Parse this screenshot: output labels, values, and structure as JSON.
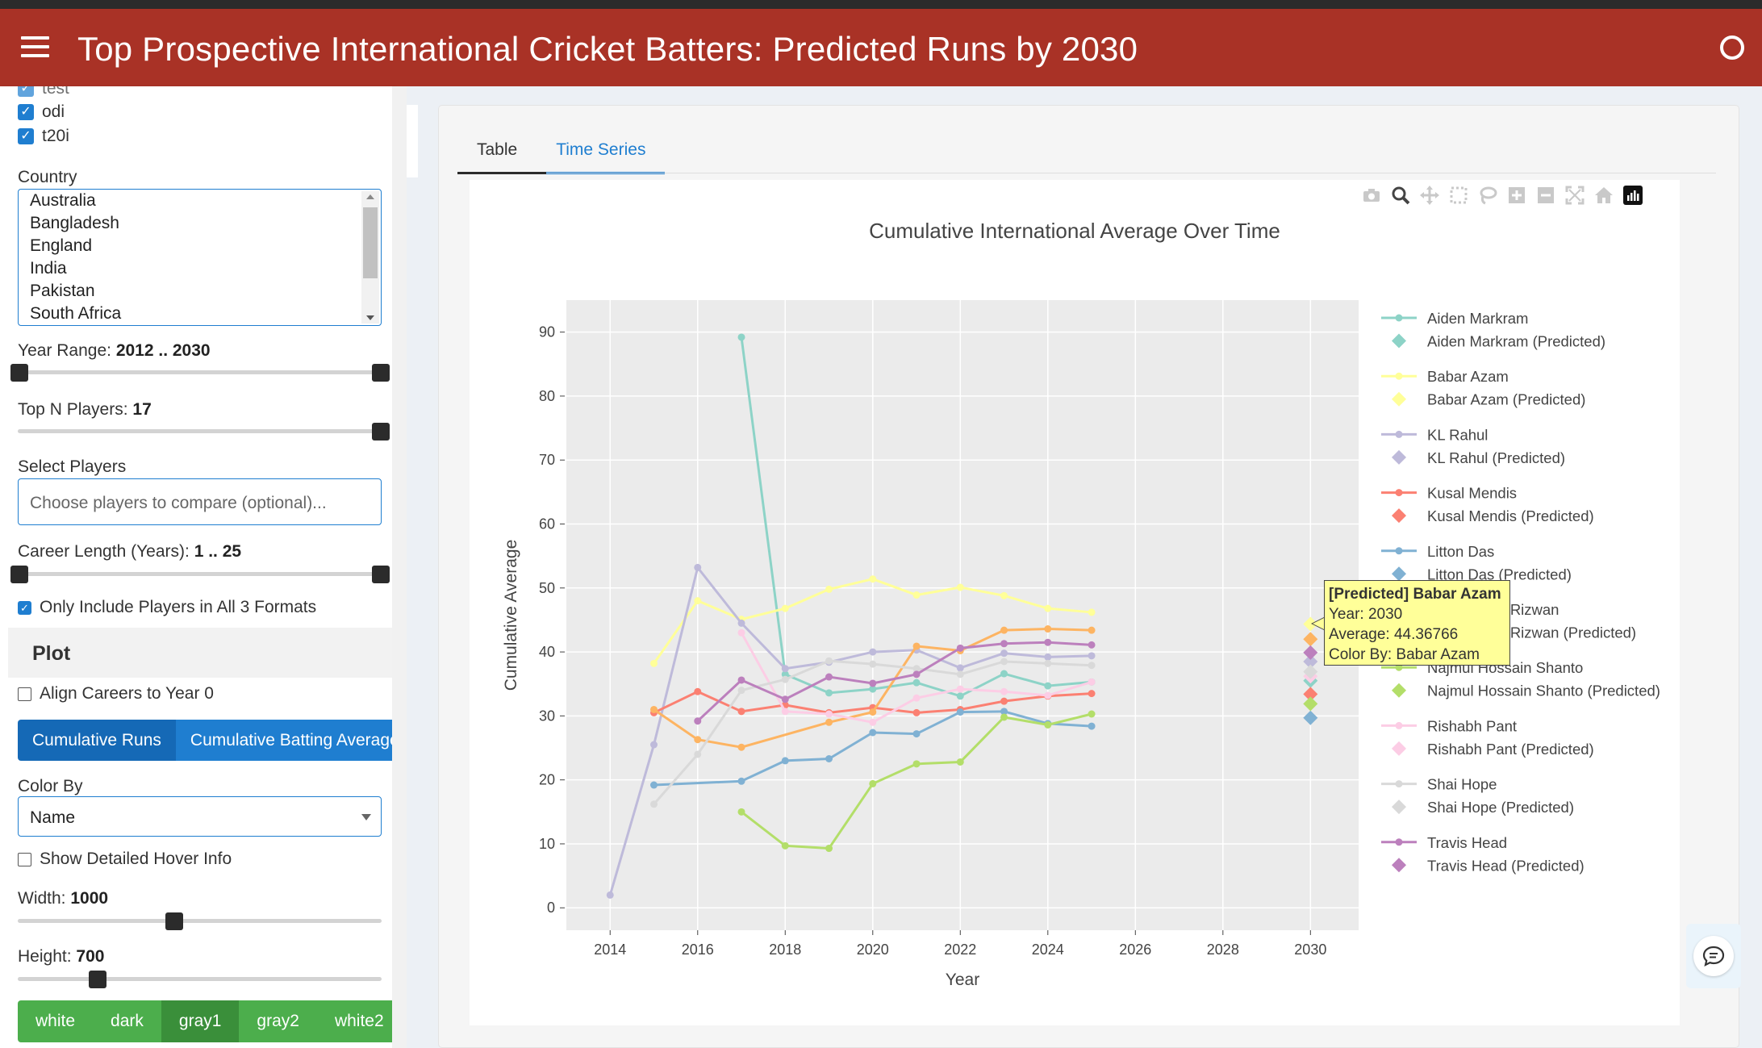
{
  "header": {
    "title": "Top Prospective International Cricket Batters: Predicted Runs by 2030"
  },
  "sidebar": {
    "formats": [
      {
        "label": "test",
        "checked": true
      },
      {
        "label": "odi",
        "checked": true
      },
      {
        "label": "t20i",
        "checked": true
      }
    ],
    "country_label": "Country",
    "countries": [
      "Australia",
      "Bangladesh",
      "England",
      "India",
      "Pakistan",
      "South Africa"
    ],
    "year_range_label": "Year Range:",
    "year_range_value": "2012 .. 2030",
    "top_n_label": "Top N Players:",
    "top_n_value": "17",
    "select_players_label": "Select Players",
    "select_players_placeholder": "Choose players to compare (optional)...",
    "career_length_label": "Career Length (Years):",
    "career_length_value": "1 .. 25",
    "all_formats_label": "Only Include Players in All 3 Formats",
    "plot_header": "Plot",
    "align_careers_label": "Align Careers to Year 0",
    "metric_buttons": [
      "Cumulative Runs",
      "Cumulative Batting Average"
    ],
    "color_by_label": "Color By",
    "color_by_value": "Name",
    "detailed_hover_label": "Show Detailed Hover Info",
    "width_label": "Width:",
    "width_value": "1000",
    "height_label": "Height:",
    "height_value": "700",
    "themes": [
      "white",
      "dark",
      "gray1",
      "gray2",
      "white2"
    ]
  },
  "tabs": [
    "Table",
    "Time Series"
  ],
  "modebar_icons": [
    "camera-icon",
    "zoom-icon",
    "pan-icon",
    "box-select-icon",
    "lasso-icon",
    "zoom-in-icon",
    "zoom-out-icon",
    "autoscale-icon",
    "home-icon",
    "plotly-logo-icon"
  ],
  "hover": {
    "title": "[Predicted] Babar Azam",
    "line1": "Year: 2030",
    "line2": "Average: 44.36766",
    "line3": "Color By: Babar Azam"
  },
  "chart_data": {
    "type": "line",
    "title": "Cumulative International Average Over Time",
    "xlabel": "Year",
    "ylabel": "Cumulative Average",
    "xlim": [
      2013,
      2031.1
    ],
    "ylim": [
      -3.5,
      95
    ],
    "xticks": [
      2014,
      2016,
      2018,
      2020,
      2022,
      2024,
      2026,
      2028,
      2030
    ],
    "yticks": [
      0,
      10,
      20,
      30,
      40,
      50,
      60,
      70,
      80,
      90
    ],
    "grid": true,
    "legend_position": "right",
    "series": [
      {
        "name": "Aiden Markram",
        "color": "#8dd3c7",
        "x": [
          2017,
          2018,
          2019,
          2020,
          2021,
          2022,
          2023,
          2024,
          2025
        ],
        "y": [
          89.2,
          36.5,
          33.6,
          34.2,
          35.2,
          33.1,
          36.6,
          34.7,
          35.3
        ],
        "predicted": {
          "name": "Aiden Markram (Predicted)",
          "x": 2030,
          "y": 35.5
        }
      },
      {
        "name": "Babar Azam",
        "color": "#ffff99",
        "x": [
          2015,
          2016,
          2017,
          2018,
          2019,
          2020,
          2021,
          2022,
          2023,
          2024,
          2025
        ],
        "y": [
          38.2,
          48.0,
          45.1,
          46.8,
          49.8,
          51.4,
          48.9,
          50.1,
          48.8,
          46.8,
          46.2
        ],
        "predicted": {
          "name": "Babar Azam (Predicted)",
          "x": 2030,
          "y": 44.37
        }
      },
      {
        "name": "KL Rahul",
        "color": "#bebada",
        "x": [
          2014,
          2015,
          2016,
          2017,
          2018,
          2019,
          2020,
          2021,
          2022,
          2023,
          2024,
          2025
        ],
        "y": [
          2.0,
          25.5,
          53.2,
          44.5,
          37.4,
          38.4,
          40.0,
          40.3,
          37.5,
          39.8,
          39.2,
          39.4
        ],
        "predicted": {
          "name": "KL Rahul (Predicted)",
          "x": 2030,
          "y": 38.5
        }
      },
      {
        "name": "Kusal Mendis",
        "color": "#fb8072",
        "x": [
          2015,
          2016,
          2017,
          2018,
          2019,
          2020,
          2021,
          2022,
          2023,
          2024,
          2025
        ],
        "y": [
          30.5,
          33.8,
          30.7,
          31.7,
          30.5,
          31.3,
          30.5,
          31.0,
          32.3,
          33.1,
          33.5
        ],
        "predicted": {
          "name": "Kusal Mendis (Predicted)",
          "x": 2030,
          "y": 33.4
        }
      },
      {
        "name": "Litton Das",
        "color": "#80b1d3",
        "x": [
          2015,
          2017,
          2018,
          2019,
          2020,
          2021,
          2022,
          2023,
          2024,
          2025
        ],
        "y": [
          19.2,
          19.8,
          23.0,
          23.3,
          27.4,
          27.2,
          30.6,
          30.7,
          28.8,
          28.4
        ],
        "predicted": {
          "name": "Litton Das (Predicted)",
          "x": 2030,
          "y": 29.7
        }
      },
      {
        "name": "Mohammad Rizwan",
        "color": "#fdb462",
        "x": [
          2015,
          2016,
          2017,
          2019,
          2020,
          2021,
          2022,
          2023,
          2024,
          2025
        ],
        "y": [
          31.0,
          26.3,
          25.1,
          29.0,
          30.6,
          40.9,
          40.2,
          43.4,
          43.6,
          43.4
        ],
        "predicted": {
          "name": "Mohammad Rizwan (Predicted)",
          "x": 2030,
          "y": 42.0
        }
      },
      {
        "name": "Najmul Hossain Shanto",
        "color": "#b3de69",
        "x": [
          2017,
          2018,
          2019,
          2020,
          2021,
          2022,
          2023,
          2024,
          2025
        ],
        "y": [
          15.0,
          9.7,
          9.3,
          19.4,
          22.5,
          22.8,
          29.8,
          28.6,
          30.3
        ],
        "predicted": {
          "name": "Najmul Hossain Shanto (Predicted)",
          "x": 2030,
          "y": 31.9
        }
      },
      {
        "name": "Rishabh Pant",
        "color": "#fccde5",
        "x": [
          2017,
          2018,
          2019,
          2020,
          2021,
          2022,
          2023,
          2024,
          2025
        ],
        "y": [
          43.0,
          30.7,
          30.3,
          29.0,
          32.8,
          34.2,
          33.8,
          33.2,
          35.3
        ],
        "predicted": {
          "name": "Rishabh Pant (Predicted)",
          "x": 2030,
          "y": 36.2
        }
      },
      {
        "name": "Shai Hope",
        "color": "#d9d9d9",
        "x": [
          2015,
          2016,
          2017,
          2018,
          2019,
          2020,
          2021,
          2022,
          2023,
          2024,
          2025
        ],
        "y": [
          16.2,
          24.0,
          34.0,
          35.7,
          38.6,
          38.1,
          37.4,
          36.5,
          38.5,
          38.2,
          37.9
        ],
        "predicted": {
          "name": "Shai Hope (Predicted)",
          "x": 2030,
          "y": 36.9
        }
      },
      {
        "name": "Travis Head",
        "color": "#bc80bd",
        "x": [
          2016,
          2017,
          2018,
          2019,
          2020,
          2021,
          2022,
          2023,
          2024,
          2025
        ],
        "y": [
          29.2,
          35.6,
          32.6,
          36.1,
          35.1,
          36.5,
          40.6,
          41.3,
          41.5,
          41.1
        ],
        "predicted": {
          "name": "Travis Head (Predicted)",
          "x": 2030,
          "y": 39.9
        }
      }
    ]
  }
}
